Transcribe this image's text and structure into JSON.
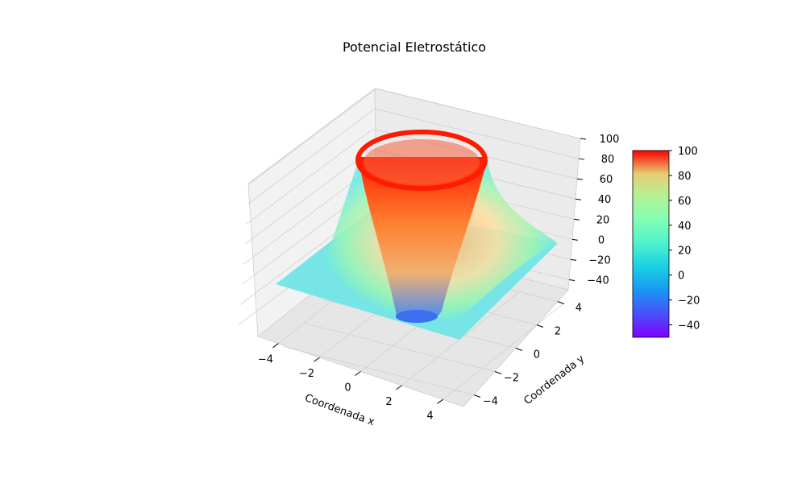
{
  "chart_data": {
    "type": "surface3d",
    "title": "Potencial Eletrostático",
    "xlabel": "Coordenada x",
    "ylabel": "Coordenada y",
    "zlabel": "",
    "xlim": [
      -5,
      5
    ],
    "ylim": [
      -5,
      5
    ],
    "zlim": [
      -50,
      100
    ],
    "xticks": [
      "−4",
      "−2",
      "0",
      "2",
      "4"
    ],
    "yticks": [
      "−4",
      "−2",
      "0",
      "2",
      "4"
    ],
    "zticks": [
      "−40",
      "−20",
      "0",
      "20",
      "40",
      "60",
      "80",
      "100"
    ],
    "colormap": "rainbow",
    "colorbar": {
      "range": [
        -50,
        100
      ],
      "ticks": [
        "−40",
        "−20",
        "0",
        "20",
        "40",
        "60",
        "80",
        "100"
      ]
    },
    "surface_description_values": {
      "boundary_value": 0,
      "ring_value": 100,
      "center_value": -40,
      "ring_radius": 1.8
    },
    "grid": true
  }
}
